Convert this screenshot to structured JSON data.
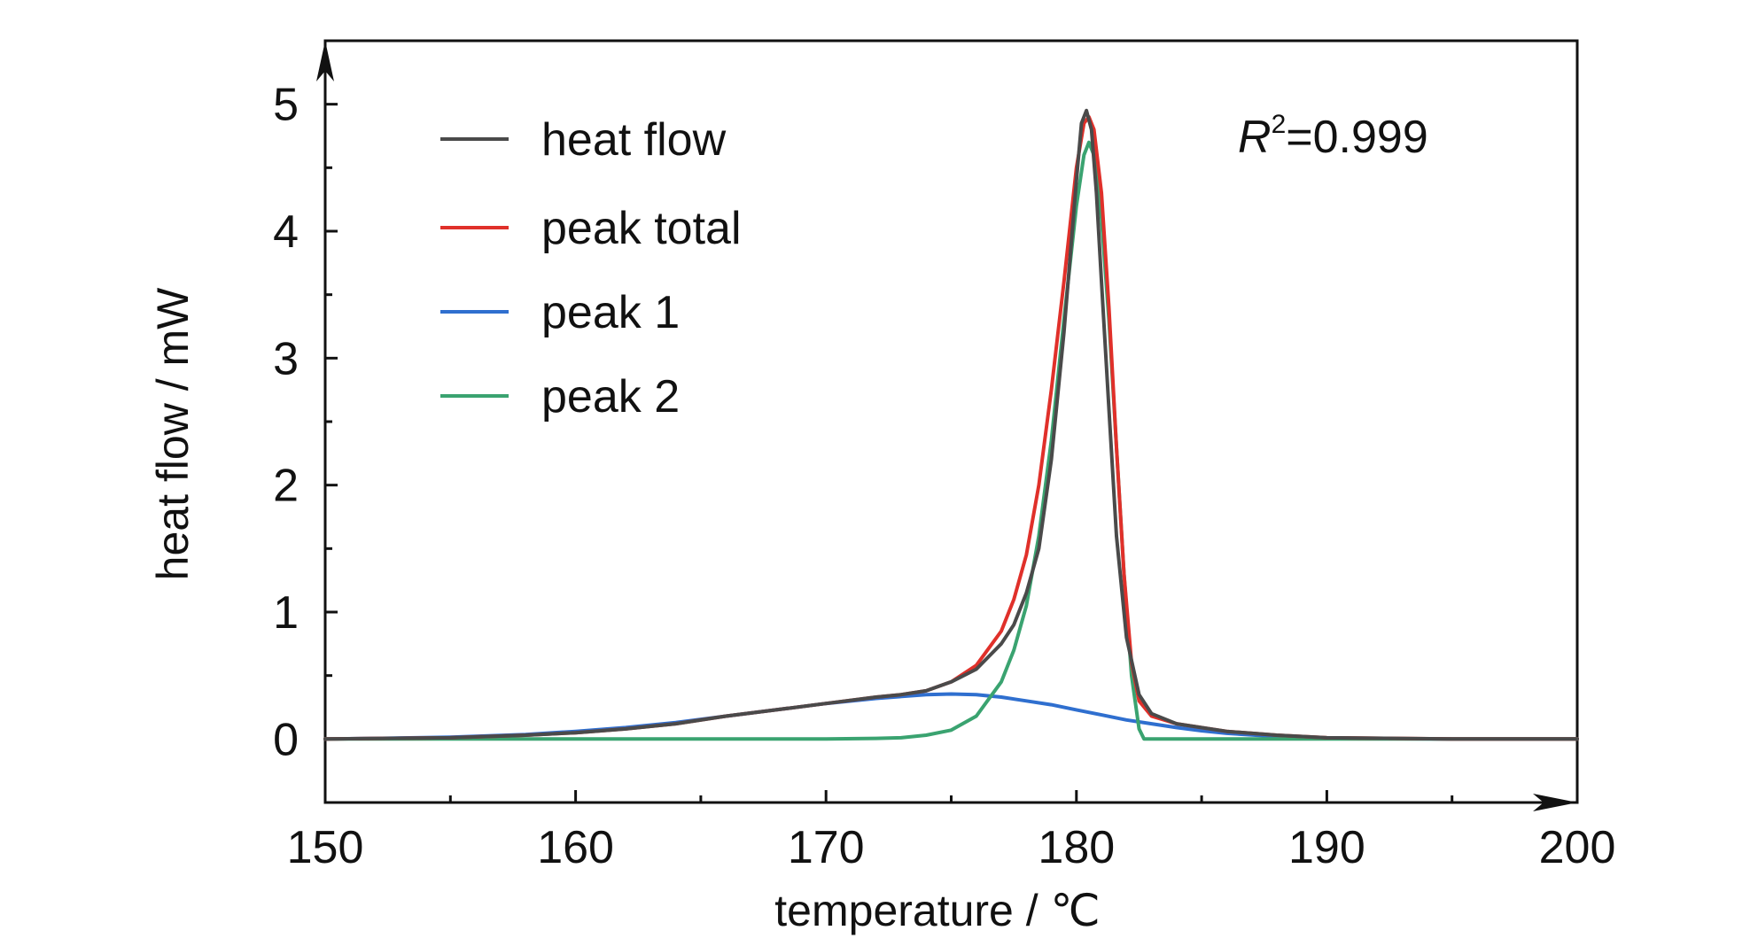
{
  "chart_data": {
    "type": "line",
    "title": "",
    "xlabel": "temperature / ℃",
    "ylabel": "heat flow / mW",
    "xlim": [
      150,
      200
    ],
    "ylim": [
      -0.5,
      5.5
    ],
    "x_ticks": [
      "150",
      "160",
      "170",
      "180",
      "190",
      "200"
    ],
    "y_ticks": [
      "0",
      "1",
      "2",
      "3",
      "4",
      "5"
    ],
    "grid": false,
    "legend_position": "top-left",
    "annotation": {
      "prefix": "R",
      "superscript": "2",
      "suffix": "=0.999"
    },
    "series": [
      {
        "name": "heat flow",
        "color": "#4a4a4a",
        "points": [
          [
            150,
            0.0
          ],
          [
            155,
            0.01
          ],
          [
            158,
            0.03
          ],
          [
            160,
            0.05
          ],
          [
            162,
            0.08
          ],
          [
            164,
            0.12
          ],
          [
            166,
            0.18
          ],
          [
            168,
            0.23
          ],
          [
            170,
            0.28
          ],
          [
            172,
            0.33
          ],
          [
            173,
            0.35
          ],
          [
            174,
            0.38
          ],
          [
            175,
            0.45
          ],
          [
            176,
            0.55
          ],
          [
            177,
            0.75
          ],
          [
            177.5,
            0.9
          ],
          [
            178,
            1.15
          ],
          [
            178.5,
            1.5
          ],
          [
            179,
            2.2
          ],
          [
            179.5,
            3.2
          ],
          [
            180,
            4.4
          ],
          [
            180.2,
            4.85
          ],
          [
            180.4,
            4.95
          ],
          [
            180.6,
            4.8
          ],
          [
            180.8,
            4.3
          ],
          [
            181,
            3.6
          ],
          [
            181.3,
            2.6
          ],
          [
            181.6,
            1.6
          ],
          [
            182,
            0.8
          ],
          [
            182.5,
            0.35
          ],
          [
            183,
            0.2
          ],
          [
            184,
            0.12
          ],
          [
            186,
            0.06
          ],
          [
            188,
            0.03
          ],
          [
            190,
            0.01
          ],
          [
            195,
            0.0
          ],
          [
            200,
            0.0
          ]
        ]
      },
      {
        "name": "peak total",
        "color": "#e0302a",
        "points": [
          [
            150,
            0.0
          ],
          [
            155,
            0.01
          ],
          [
            158,
            0.03
          ],
          [
            160,
            0.05
          ],
          [
            162,
            0.08
          ],
          [
            164,
            0.12
          ],
          [
            166,
            0.18
          ],
          [
            168,
            0.23
          ],
          [
            170,
            0.28
          ],
          [
            172,
            0.33
          ],
          [
            173,
            0.35
          ],
          [
            174,
            0.38
          ],
          [
            175,
            0.45
          ],
          [
            176,
            0.58
          ],
          [
            177,
            0.85
          ],
          [
            177.5,
            1.1
          ],
          [
            178,
            1.45
          ],
          [
            178.5,
            2.0
          ],
          [
            179,
            2.75
          ],
          [
            179.5,
            3.6
          ],
          [
            180,
            4.5
          ],
          [
            180.3,
            4.85
          ],
          [
            180.5,
            4.9
          ],
          [
            180.7,
            4.8
          ],
          [
            181,
            4.3
          ],
          [
            181.3,
            3.4
          ],
          [
            181.6,
            2.3
          ],
          [
            181.9,
            1.3
          ],
          [
            182.2,
            0.6
          ],
          [
            182.5,
            0.3
          ],
          [
            183,
            0.18
          ],
          [
            184,
            0.12
          ],
          [
            186,
            0.06
          ],
          [
            188,
            0.03
          ],
          [
            190,
            0.01
          ],
          [
            195,
            0.0
          ],
          [
            200,
            0.0
          ]
        ]
      },
      {
        "name": "peak 1",
        "color": "#2f6fcf",
        "points": [
          [
            150,
            0.0
          ],
          [
            152,
            0.005
          ],
          [
            155,
            0.015
          ],
          [
            158,
            0.035
          ],
          [
            160,
            0.06
          ],
          [
            162,
            0.09
          ],
          [
            164,
            0.13
          ],
          [
            166,
            0.18
          ],
          [
            168,
            0.23
          ],
          [
            170,
            0.28
          ],
          [
            172,
            0.32
          ],
          [
            174,
            0.35
          ],
          [
            175,
            0.355
          ],
          [
            176,
            0.35
          ],
          [
            177,
            0.33
          ],
          [
            178,
            0.3
          ],
          [
            179,
            0.27
          ],
          [
            180,
            0.23
          ],
          [
            181,
            0.19
          ],
          [
            182,
            0.15
          ],
          [
            183,
            0.12
          ],
          [
            184,
            0.09
          ],
          [
            185,
            0.065
          ],
          [
            186,
            0.045
          ],
          [
            188,
            0.02
          ],
          [
            190,
            0.008
          ],
          [
            192,
            0.003
          ],
          [
            195,
            0.0
          ],
          [
            200,
            0.0
          ]
        ]
      },
      {
        "name": "peak 2",
        "color": "#3aa370",
        "points": [
          [
            150,
            0.0
          ],
          [
            165,
            0.0
          ],
          [
            170,
            0.0
          ],
          [
            172,
            0.005
          ],
          [
            173,
            0.01
          ],
          [
            174,
            0.03
          ],
          [
            175,
            0.07
          ],
          [
            176,
            0.18
          ],
          [
            177,
            0.45
          ],
          [
            177.5,
            0.7
          ],
          [
            178,
            1.05
          ],
          [
            178.5,
            1.6
          ],
          [
            179,
            2.35
          ],
          [
            179.5,
            3.3
          ],
          [
            180,
            4.2
          ],
          [
            180.3,
            4.6
          ],
          [
            180.5,
            4.7
          ],
          [
            180.7,
            4.6
          ],
          [
            181,
            4.1
          ],
          [
            181.3,
            3.3
          ],
          [
            181.6,
            2.3
          ],
          [
            181.9,
            1.3
          ],
          [
            182.2,
            0.5
          ],
          [
            182.5,
            0.08
          ],
          [
            182.7,
            0.0
          ],
          [
            185,
            0.0
          ],
          [
            200,
            0.0
          ]
        ]
      }
    ]
  }
}
